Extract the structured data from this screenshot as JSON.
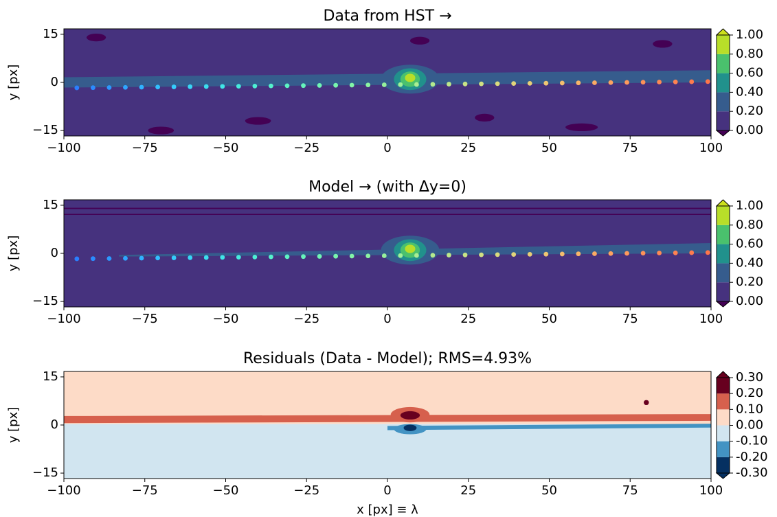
{
  "chart_data": [
    {
      "type": "contour",
      "title": "Data from HST →",
      "ylabel": "y [px]",
      "xlim": [
        -100,
        100
      ],
      "ylim": [
        -16.7,
        16.7
      ],
      "xticks": [
        {
          "value": -100,
          "label": "−100"
        },
        {
          "value": -75,
          "label": "−75"
        },
        {
          "value": -50,
          "label": "−50"
        },
        {
          "value": -25,
          "label": "−25"
        },
        0,
        25,
        50,
        75,
        100
      ],
      "yticks": [
        {
          "value": -15,
          "label": "−15"
        },
        0,
        15
      ],
      "colorbar": {
        "ticks": [
          {
            "value": 0,
            "label": "0.00"
          },
          {
            "value": 0.2,
            "label": "0.20"
          },
          {
            "value": 0.4,
            "label": "0.40"
          },
          {
            "value": 0.6,
            "label": "0.60"
          },
          {
            "value": 0.8,
            "label": "0.80"
          },
          {
            "value": 1,
            "label": "1.00"
          }
        ],
        "colors": [
          "#440154",
          "#46327e",
          "#365c8d",
          "#21918c",
          "#4ac16d",
          "#b8de29",
          "#cde11d"
        ]
      },
      "series": [
        {
          "x": [
            -96,
            -91,
            -86,
            -81,
            -76,
            -71,
            -66,
            -61,
            -56,
            -51,
            -46,
            -41,
            -36,
            -31,
            -26,
            -21,
            -16,
            -11,
            -6,
            -1,
            4,
            9,
            14,
            19,
            24,
            29,
            34,
            39,
            44,
            49,
            54,
            59,
            64,
            69,
            74,
            79,
            84,
            89,
            94,
            99
          ],
          "y": [
            -1.7,
            -1.65,
            -1.6,
            -1.55,
            -1.5,
            -1.45,
            -1.4,
            -1.35,
            -1.3,
            -1.25,
            -1.2,
            -1.15,
            -1.1,
            -1.05,
            -1,
            -0.95,
            -0.9,
            -0.85,
            -0.8,
            -0.75,
            -0.7,
            -0.65,
            -0.6,
            -0.55,
            -0.5,
            -0.45,
            -0.4,
            -0.35,
            -0.3,
            -0.25,
            -0.2,
            -0.15,
            -0.1,
            -0.05,
            0,
            0.05,
            0.1,
            0.15,
            0.2,
            0.25
          ],
          "colors": [
            "#2a7fff",
            "#2b8cff",
            "#2c99ff",
            "#2ea6ff",
            "#30b3ff",
            "#32c0ff",
            "#35ccfb",
            "#38d6f5",
            "#3bdfee",
            "#40e6e6",
            "#46ebdd",
            "#4defd4",
            "#55f2cb",
            "#5df4c3",
            "#66f5bb",
            "#6ff6b4",
            "#78f6ad",
            "#82f5a7",
            "#8cf4a1",
            "#96f29c",
            "#a0f097",
            "#aaee92",
            "#b4eb8e",
            "#bee88a",
            "#c8e486",
            "#d1e082",
            "#dadb7e",
            "#e2d57a",
            "#e9ce76",
            "#efc672",
            "#f4bd6d",
            "#f8b469",
            "#fbab64",
            "#fda260",
            "#fe995c",
            "#ff9158",
            "#ff8954",
            "#ff8251",
            "#ff7b4e",
            "#ff754b"
          ]
        }
      ]
    },
    {
      "type": "contour",
      "title": "Model → (with Δy=0)",
      "ylabel": "y [px]",
      "xlim": [
        -100,
        100
      ],
      "ylim": [
        -16.7,
        16.7
      ],
      "xticks": [
        {
          "value": -100,
          "label": "−100"
        },
        {
          "value": -75,
          "label": "−75"
        },
        {
          "value": -50,
          "label": "−50"
        },
        {
          "value": -25,
          "label": "−25"
        },
        0,
        25,
        50,
        75,
        100
      ],
      "yticks": [
        {
          "value": -15,
          "label": "−15"
        },
        0,
        15
      ],
      "colorbar": {
        "ticks": [
          {
            "value": 0,
            "label": "0.00"
          },
          {
            "value": 0.2,
            "label": "0.20"
          },
          {
            "value": 0.4,
            "label": "0.40"
          },
          {
            "value": 0.6,
            "label": "0.60"
          },
          {
            "value": 0.8,
            "label": "0.80"
          },
          {
            "value": 1,
            "label": "1.00"
          }
        ],
        "colors": [
          "#440154",
          "#46327e",
          "#365c8d",
          "#21918c",
          "#4ac16d",
          "#b8de29",
          "#cde11d"
        ]
      },
      "series": [
        {
          "x": [
            -96,
            -91,
            -86,
            -81,
            -76,
            -71,
            -66,
            -61,
            -56,
            -51,
            -46,
            -41,
            -36,
            -31,
            -26,
            -21,
            -16,
            -11,
            -6,
            -1,
            4,
            9,
            14,
            19,
            24,
            29,
            34,
            39,
            44,
            49,
            54,
            59,
            64,
            69,
            74,
            79,
            84,
            89,
            94,
            99
          ],
          "y": [
            -1.7,
            -1.65,
            -1.6,
            -1.55,
            -1.5,
            -1.45,
            -1.4,
            -1.35,
            -1.3,
            -1.25,
            -1.2,
            -1.15,
            -1.1,
            -1.05,
            -1,
            -0.95,
            -0.9,
            -0.85,
            -0.8,
            -0.75,
            -0.7,
            -0.65,
            -0.6,
            -0.55,
            -0.5,
            -0.45,
            -0.4,
            -0.35,
            -0.3,
            -0.25,
            -0.2,
            -0.15,
            -0.1,
            -0.05,
            0,
            0.05,
            0.1,
            0.15,
            0.2,
            0.25
          ],
          "colors": [
            "#2a7fff",
            "#2b8cff",
            "#2c99ff",
            "#2ea6ff",
            "#30b3ff",
            "#32c0ff",
            "#35ccfb",
            "#38d6f5",
            "#3bdfee",
            "#40e6e6",
            "#46ebdd",
            "#4defd4",
            "#55f2cb",
            "#5df4c3",
            "#66f5bb",
            "#6ff6b4",
            "#78f6ad",
            "#82f5a7",
            "#8cf4a1",
            "#96f29c",
            "#a0f097",
            "#aaee92",
            "#b4eb8e",
            "#bee88a",
            "#c8e486",
            "#d1e082",
            "#dadb7e",
            "#e2d57a",
            "#e9ce76",
            "#efc672",
            "#f4bd6d",
            "#f8b469",
            "#fbab64",
            "#fda260",
            "#fe995c",
            "#ff9158",
            "#ff8954",
            "#ff8251",
            "#ff7b4e",
            "#ff754b"
          ]
        }
      ]
    },
    {
      "type": "residual",
      "title": "Residuals (Data - Model); RMS=4.93%",
      "ylabel": "y [px]",
      "xlabel": "x [px] ≡ λ",
      "xlim": [
        -100,
        100
      ],
      "ylim": [
        -16.7,
        16.7
      ],
      "xticks": [
        {
          "value": -100,
          "label": "−100"
        },
        {
          "value": -75,
          "label": "−75"
        },
        {
          "value": -50,
          "label": "−50"
        },
        {
          "value": -25,
          "label": "−25"
        },
        0,
        25,
        50,
        75,
        100
      ],
      "yticks": [
        {
          "value": -15,
          "label": "−15"
        },
        0,
        15
      ],
      "colorbar": {
        "ticks": [
          {
            "value": -0.3,
            "label": "-0.30"
          },
          {
            "value": -0.2,
            "label": "-0.20"
          },
          {
            "value": -0.1,
            "label": "-0.10"
          },
          {
            "value": 0,
            "label": "0.00"
          },
          {
            "value": 0.1,
            "label": "0.10"
          },
          {
            "value": 0.2,
            "label": "0.20"
          },
          {
            "value": 0.3,
            "label": "0.30"
          }
        ],
        "colors": [
          "#053061",
          "#053061",
          "#4393c3",
          "#d1e5f0",
          "#fddbc7",
          "#d6604d",
          "#67001f",
          "#67001f"
        ]
      }
    }
  ]
}
